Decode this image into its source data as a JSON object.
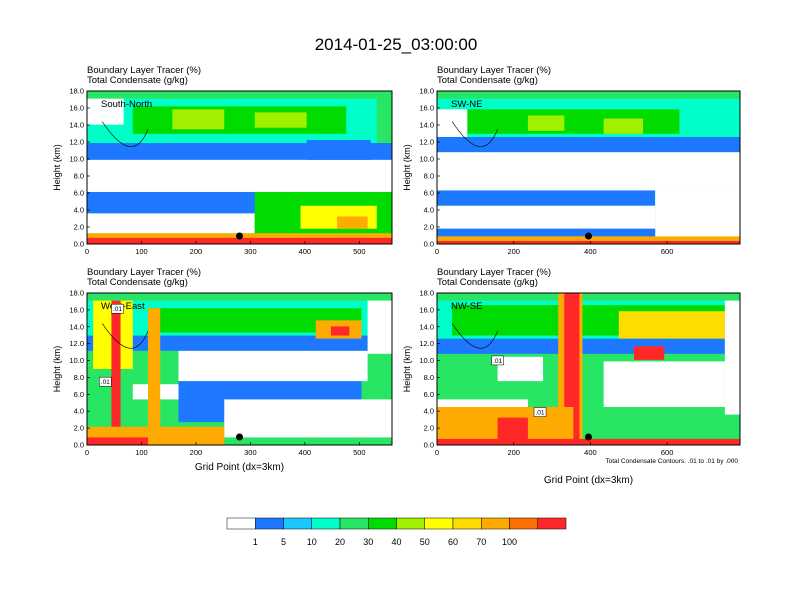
{
  "figure": {
    "title": "2014-01-25_03:00:00",
    "footnote": "Total Condensate Contours: .01 to .01 by .000"
  },
  "chart_data": [
    {
      "type": "heatmap",
      "title": "South-North",
      "field_label": "Boundary Layer Tracer   (%)",
      "contour_label": "Total Condensate   (g/kg)",
      "ylabel": "Height (km)",
      "xlabel": "",
      "xlim": [
        0,
        560
      ],
      "xticks": [
        "0",
        "100",
        "200",
        "300",
        "400",
        "500"
      ],
      "ylim": [
        0,
        18
      ],
      "yticks": [
        "0.0",
        "2.0",
        "4.0",
        "6.0",
        "8.0",
        "10.0",
        "12.0",
        "14.0",
        "16.0",
        "18.0"
      ],
      "marker_x": 280,
      "contour_labels": []
    },
    {
      "type": "heatmap",
      "title": "SW-NE",
      "field_label": "Boundary Layer Tracer   (%)",
      "contour_label": "Total Condensate   (g/kg)",
      "ylabel": "Height (km)",
      "xlabel": "",
      "xlim": [
        0,
        790
      ],
      "xticks": [
        "0",
        "200",
        "400",
        "600"
      ],
      "ylim": [
        0,
        18
      ],
      "yticks": [
        "0.0",
        "2.0",
        "4.0",
        "6.0",
        "8.0",
        "10.0",
        "12.0",
        "14.0",
        "16.0",
        "18.0"
      ],
      "marker_x": 395,
      "contour_labels": []
    },
    {
      "type": "heatmap",
      "title": "West-East",
      "field_label": "Boundary Layer Tracer   (%)",
      "contour_label": "Total Condensate   (g/kg)",
      "ylabel": "Height (km)",
      "xlabel": "Grid Point (dx=3km)",
      "xlim": [
        0,
        560
      ],
      "xticks": [
        "0",
        "100",
        "200",
        "300",
        "400",
        "500"
      ],
      "ylim": [
        0,
        18
      ],
      "yticks": [
        "0.0",
        "2.0",
        "4.0",
        "6.0",
        "8.0",
        "10.0",
        "12.0",
        "14.0",
        "16.0",
        "18.0"
      ],
      "marker_x": 280,
      "contour_labels": [
        ".01",
        ".01"
      ]
    },
    {
      "type": "heatmap",
      "title": "NW-SE",
      "field_label": "Boundary Layer Tracer   (%)",
      "contour_label": "Total Condensate   (g/kg)",
      "ylabel": "Height (km)",
      "xlabel": "Grid Point (dx=3km)",
      "xlim": [
        0,
        790
      ],
      "xticks": [
        "0",
        "200",
        "400",
        "600"
      ],
      "ylim": [
        0,
        18
      ],
      "yticks": [
        "0.0",
        "2.0",
        "4.0",
        "6.0",
        "8.0",
        "10.0",
        "12.0",
        "14.0",
        "16.0",
        "18.0"
      ],
      "marker_x": 395,
      "contour_labels": [
        ".01",
        ".01"
      ]
    }
  ],
  "colorbar": {
    "labels": [
      "1",
      "5",
      "10",
      "20",
      "30",
      "40",
      "50",
      "60",
      "70",
      "100"
    ],
    "colors": [
      "#ffffff",
      "#1e78ff",
      "#18c8ff",
      "#00ffc8",
      "#28e664",
      "#00dc00",
      "#a0f000",
      "#ffff00",
      "#ffdc00",
      "#ffaa00",
      "#ff6e00",
      "#ff2828"
    ]
  },
  "palette": {
    "white": "#ffffff",
    "blue": "#1e78ff",
    "lightblue": "#18c8ff",
    "cyan": "#00ffc8",
    "seagreen": "#28e664",
    "green": "#00dc00",
    "lime": "#a0f000",
    "yellow": "#ffff00",
    "gold": "#ffdc00",
    "orange": "#ffaa00",
    "darkorange": "#ff6e00",
    "red": "#ff2828"
  }
}
